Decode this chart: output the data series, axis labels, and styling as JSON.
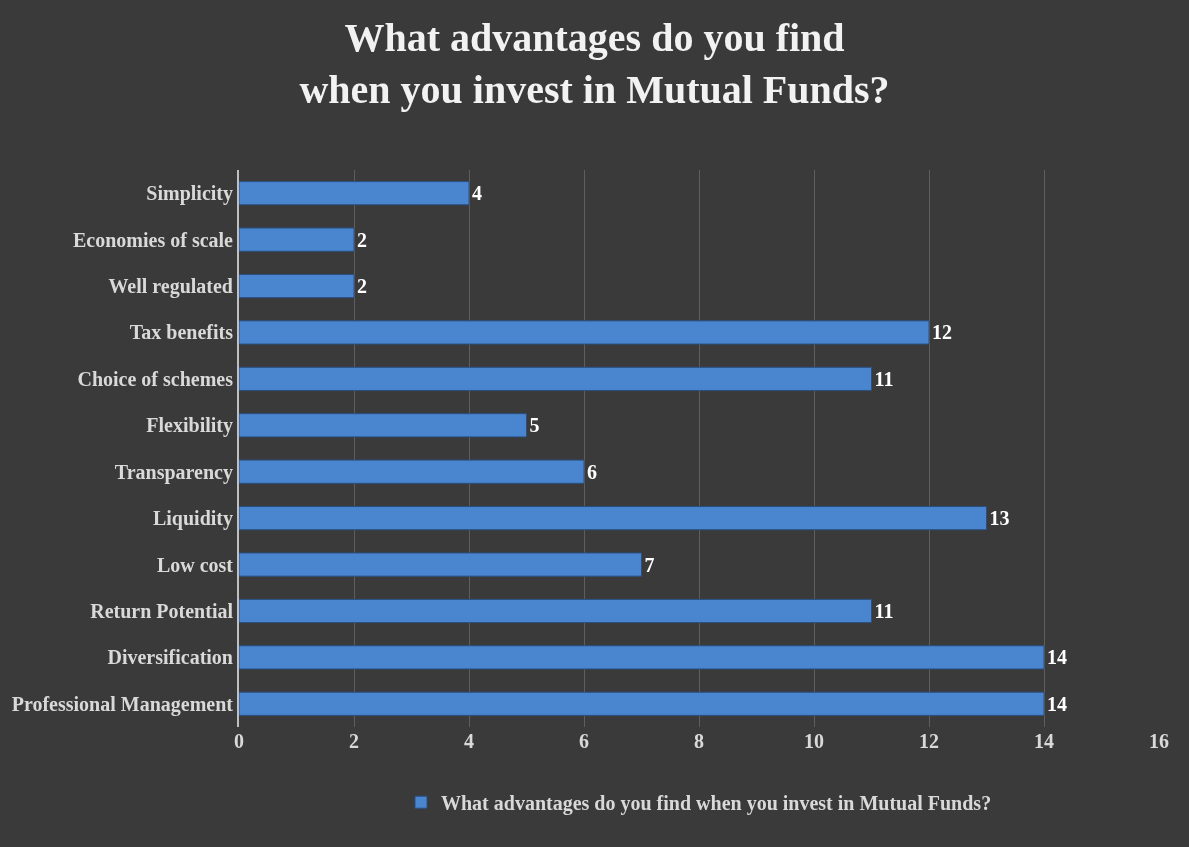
{
  "chart_data": {
    "type": "bar",
    "orientation": "horizontal",
    "title": "What advantages do you find when you invest in Mutual Funds?",
    "categories": [
      "Simplicity",
      "Economies of scale",
      "Well regulated",
      "Tax benefits",
      "Choice of schemes",
      "Flexibility",
      "Transparency",
      "Liquidity",
      "Low cost",
      "Return Potential",
      "Diversification",
      "Professional Management"
    ],
    "series": [
      {
        "name": "What advantages do you find when you invest in Mutual Funds?",
        "color": "#4a86d0",
        "values": [
          4,
          2,
          2,
          12,
          11,
          5,
          6,
          13,
          7,
          11,
          14,
          14
        ]
      }
    ],
    "xlim": [
      0,
      16
    ],
    "xticks": [
      0,
      2,
      4,
      6,
      8,
      10,
      12,
      14,
      16
    ],
    "grid": "x",
    "legend": "bottom",
    "data_labels": true
  }
}
